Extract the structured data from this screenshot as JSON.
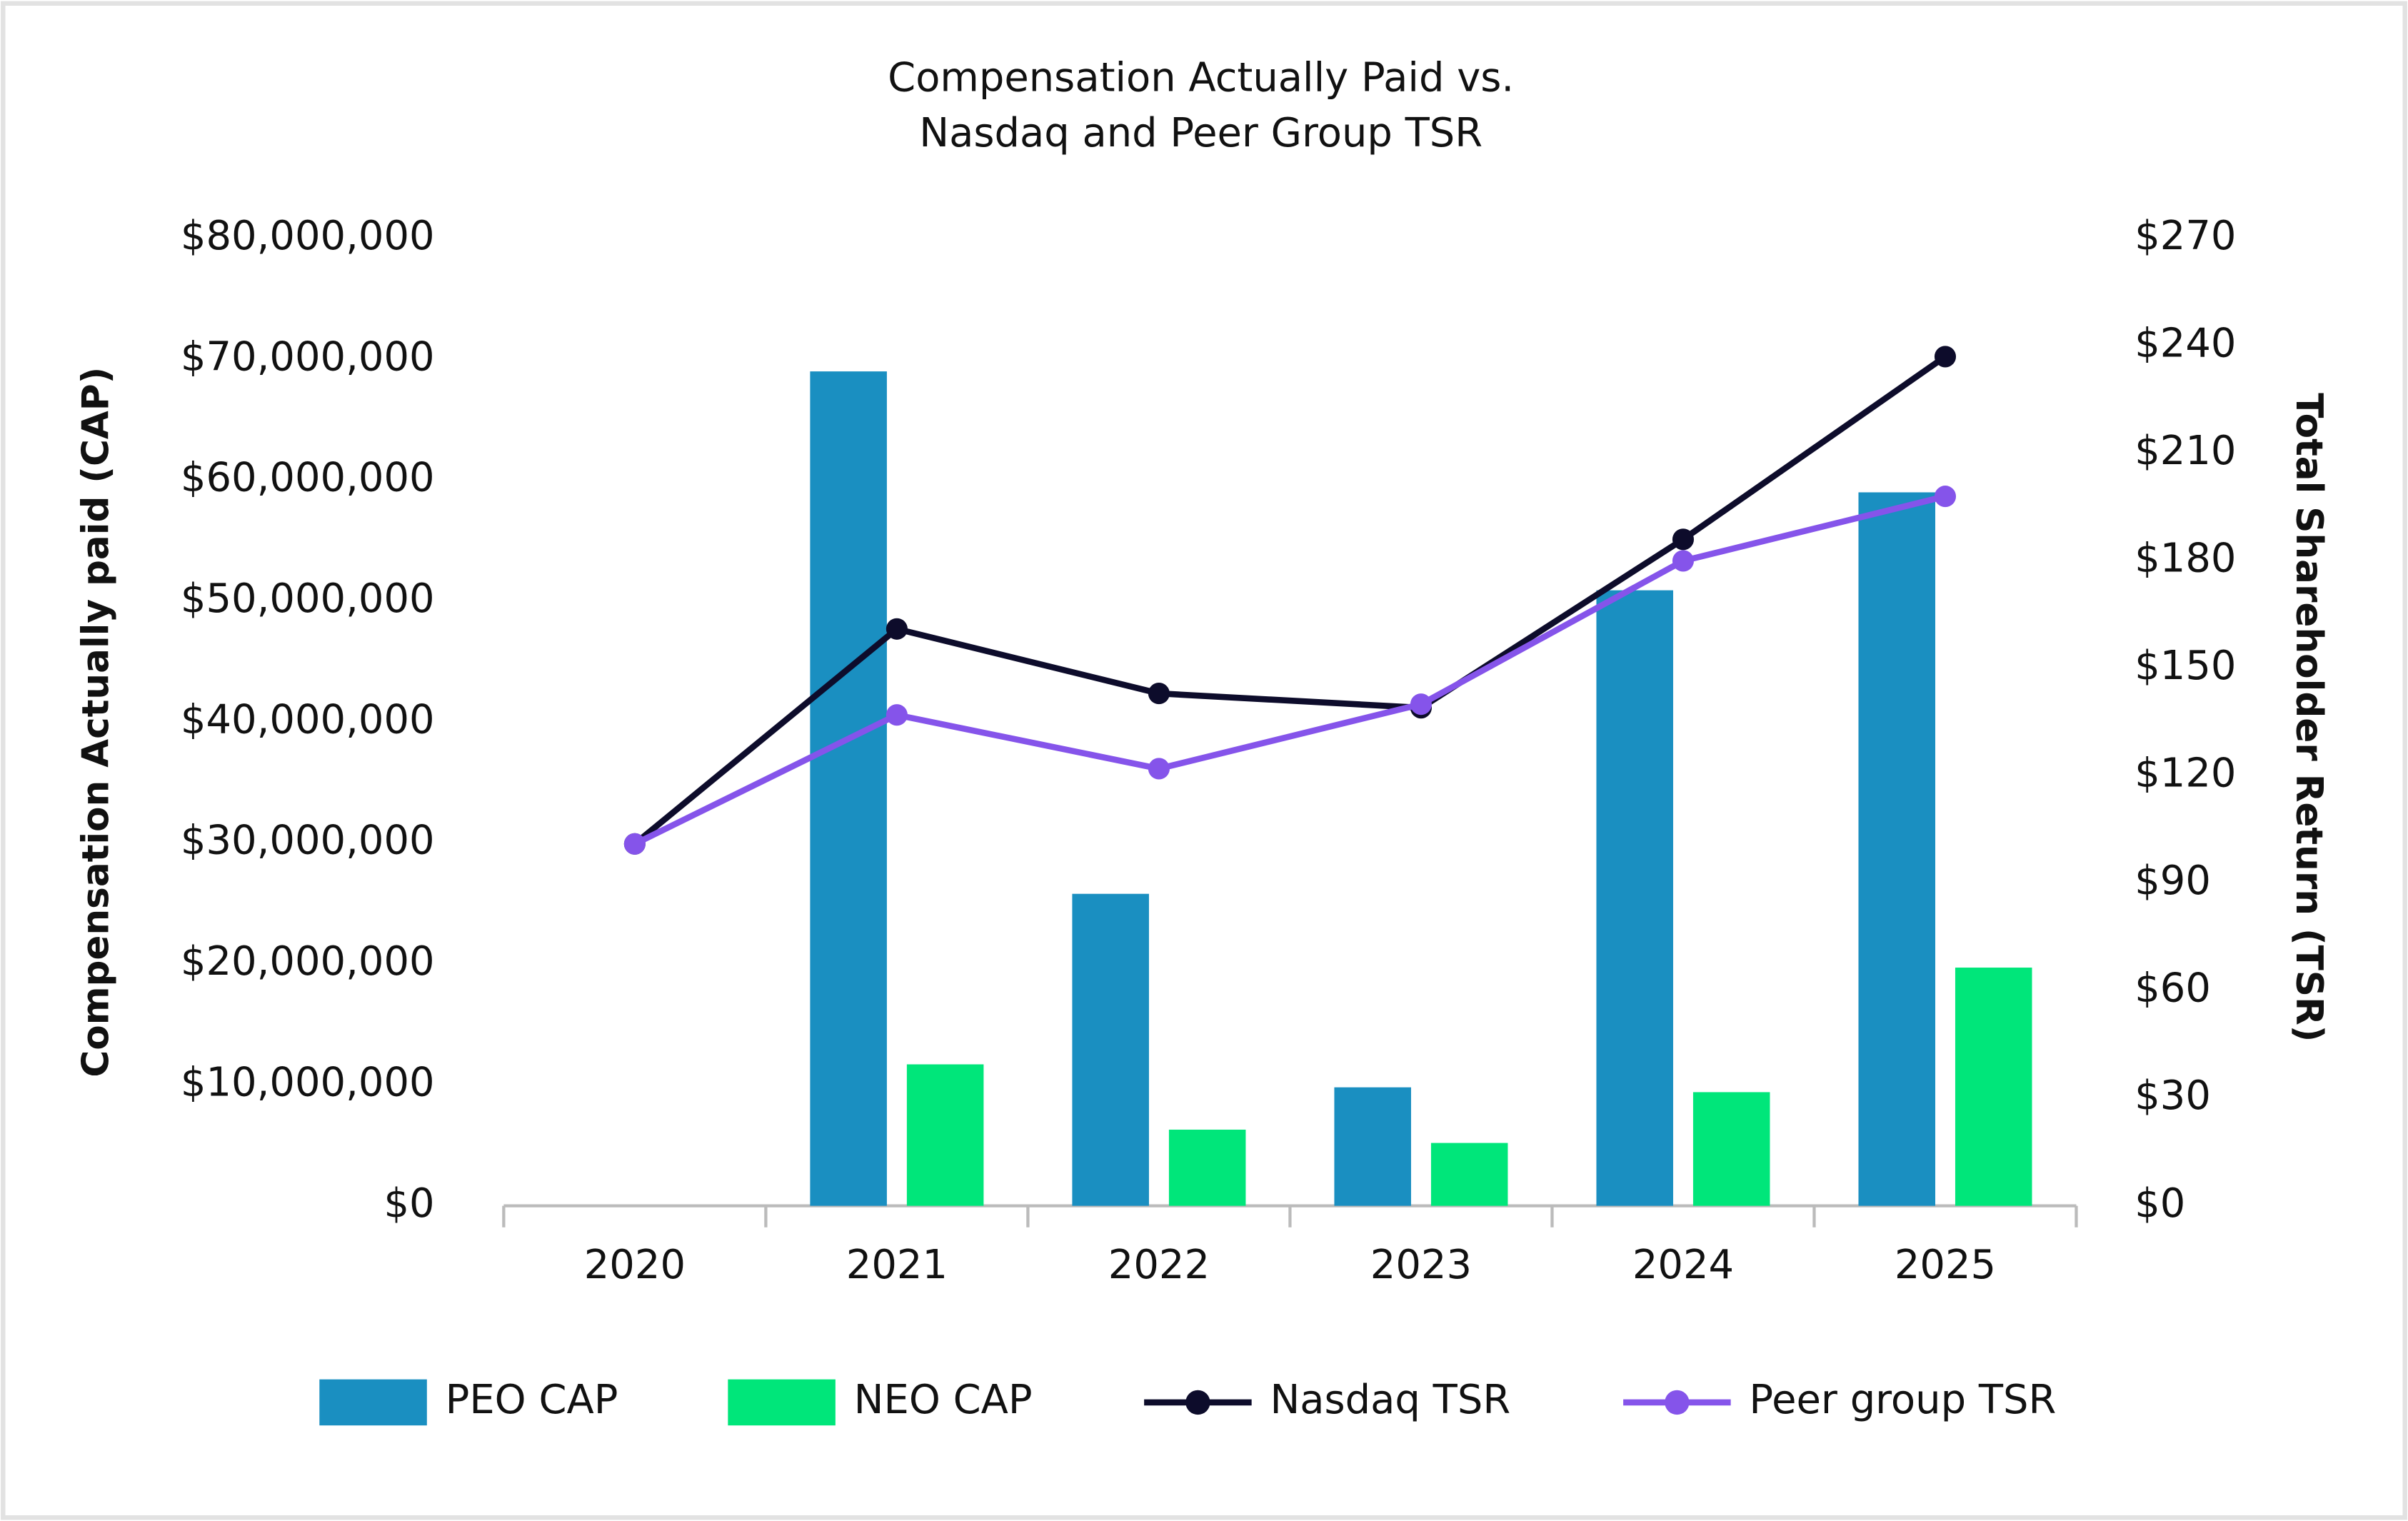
{
  "chart_data": {
    "type": "bar_line",
    "title": [
      "Compensation Actually Paid vs.",
      "Nasdaq and Peer Group TSR"
    ],
    "y_label": "Compensation Actually paid (CAP)",
    "y2_label": "Total Shareholder Return (TSR)",
    "categories": [
      "2020",
      "2021",
      "2022",
      "2023",
      "2024",
      "2025"
    ],
    "series": [
      {
        "name": "PEO CAP",
        "type": "bar",
        "color": "#1a8fc1",
        "values": [
          null,
          69000000,
          25800000,
          9800000,
          50900000,
          59000000
        ]
      },
      {
        "name": "NEO CAP",
        "type": "bar",
        "color": "#00e67a",
        "values": [
          null,
          11700000,
          6300000,
          5200000,
          9400000,
          19700000
        ]
      },
      {
        "name": "Nasdaq TSR",
        "type": "line",
        "axis": "y2",
        "color": "#0d0c2b",
        "values": [
          101,
          161,
          143,
          139,
          186,
          237
        ]
      },
      {
        "name": "Peer group TSR",
        "type": "line",
        "axis": "y2",
        "color": "#8554ea",
        "values": [
          101,
          137,
          122,
          140,
          180,
          198
        ]
      }
    ],
    "ylim": [
      0,
      80000000
    ],
    "yticks": [
      {
        "value": 0,
        "label": "$0"
      },
      {
        "value": 10000000,
        "label": "$10,000,000"
      },
      {
        "value": 20000000,
        "label": "$20,000,000"
      },
      {
        "value": 30000000,
        "label": "$30,000,000"
      },
      {
        "value": 40000000,
        "label": "$40,000,000"
      },
      {
        "value": 50000000,
        "label": "$50,000,000"
      },
      {
        "value": 60000000,
        "label": "$60,000,000"
      },
      {
        "value": 70000000,
        "label": "$70,000,000"
      },
      {
        "value": 80000000,
        "label": "$80,000,000"
      }
    ],
    "y2lim": [
      0,
      270
    ],
    "y2ticks": [
      {
        "value": 0,
        "label": "$0"
      },
      {
        "value": 30,
        "label": "$30"
      },
      {
        "value": 60,
        "label": "$60"
      },
      {
        "value": 90,
        "label": "$90"
      },
      {
        "value": 120,
        "label": "$120"
      },
      {
        "value": 150,
        "label": "$150"
      },
      {
        "value": 180,
        "label": "$180"
      },
      {
        "value": 210,
        "label": "$210"
      },
      {
        "value": 240,
        "label": "$240"
      },
      {
        "value": 270,
        "label": "$270"
      }
    ],
    "legend": "bottom"
  }
}
